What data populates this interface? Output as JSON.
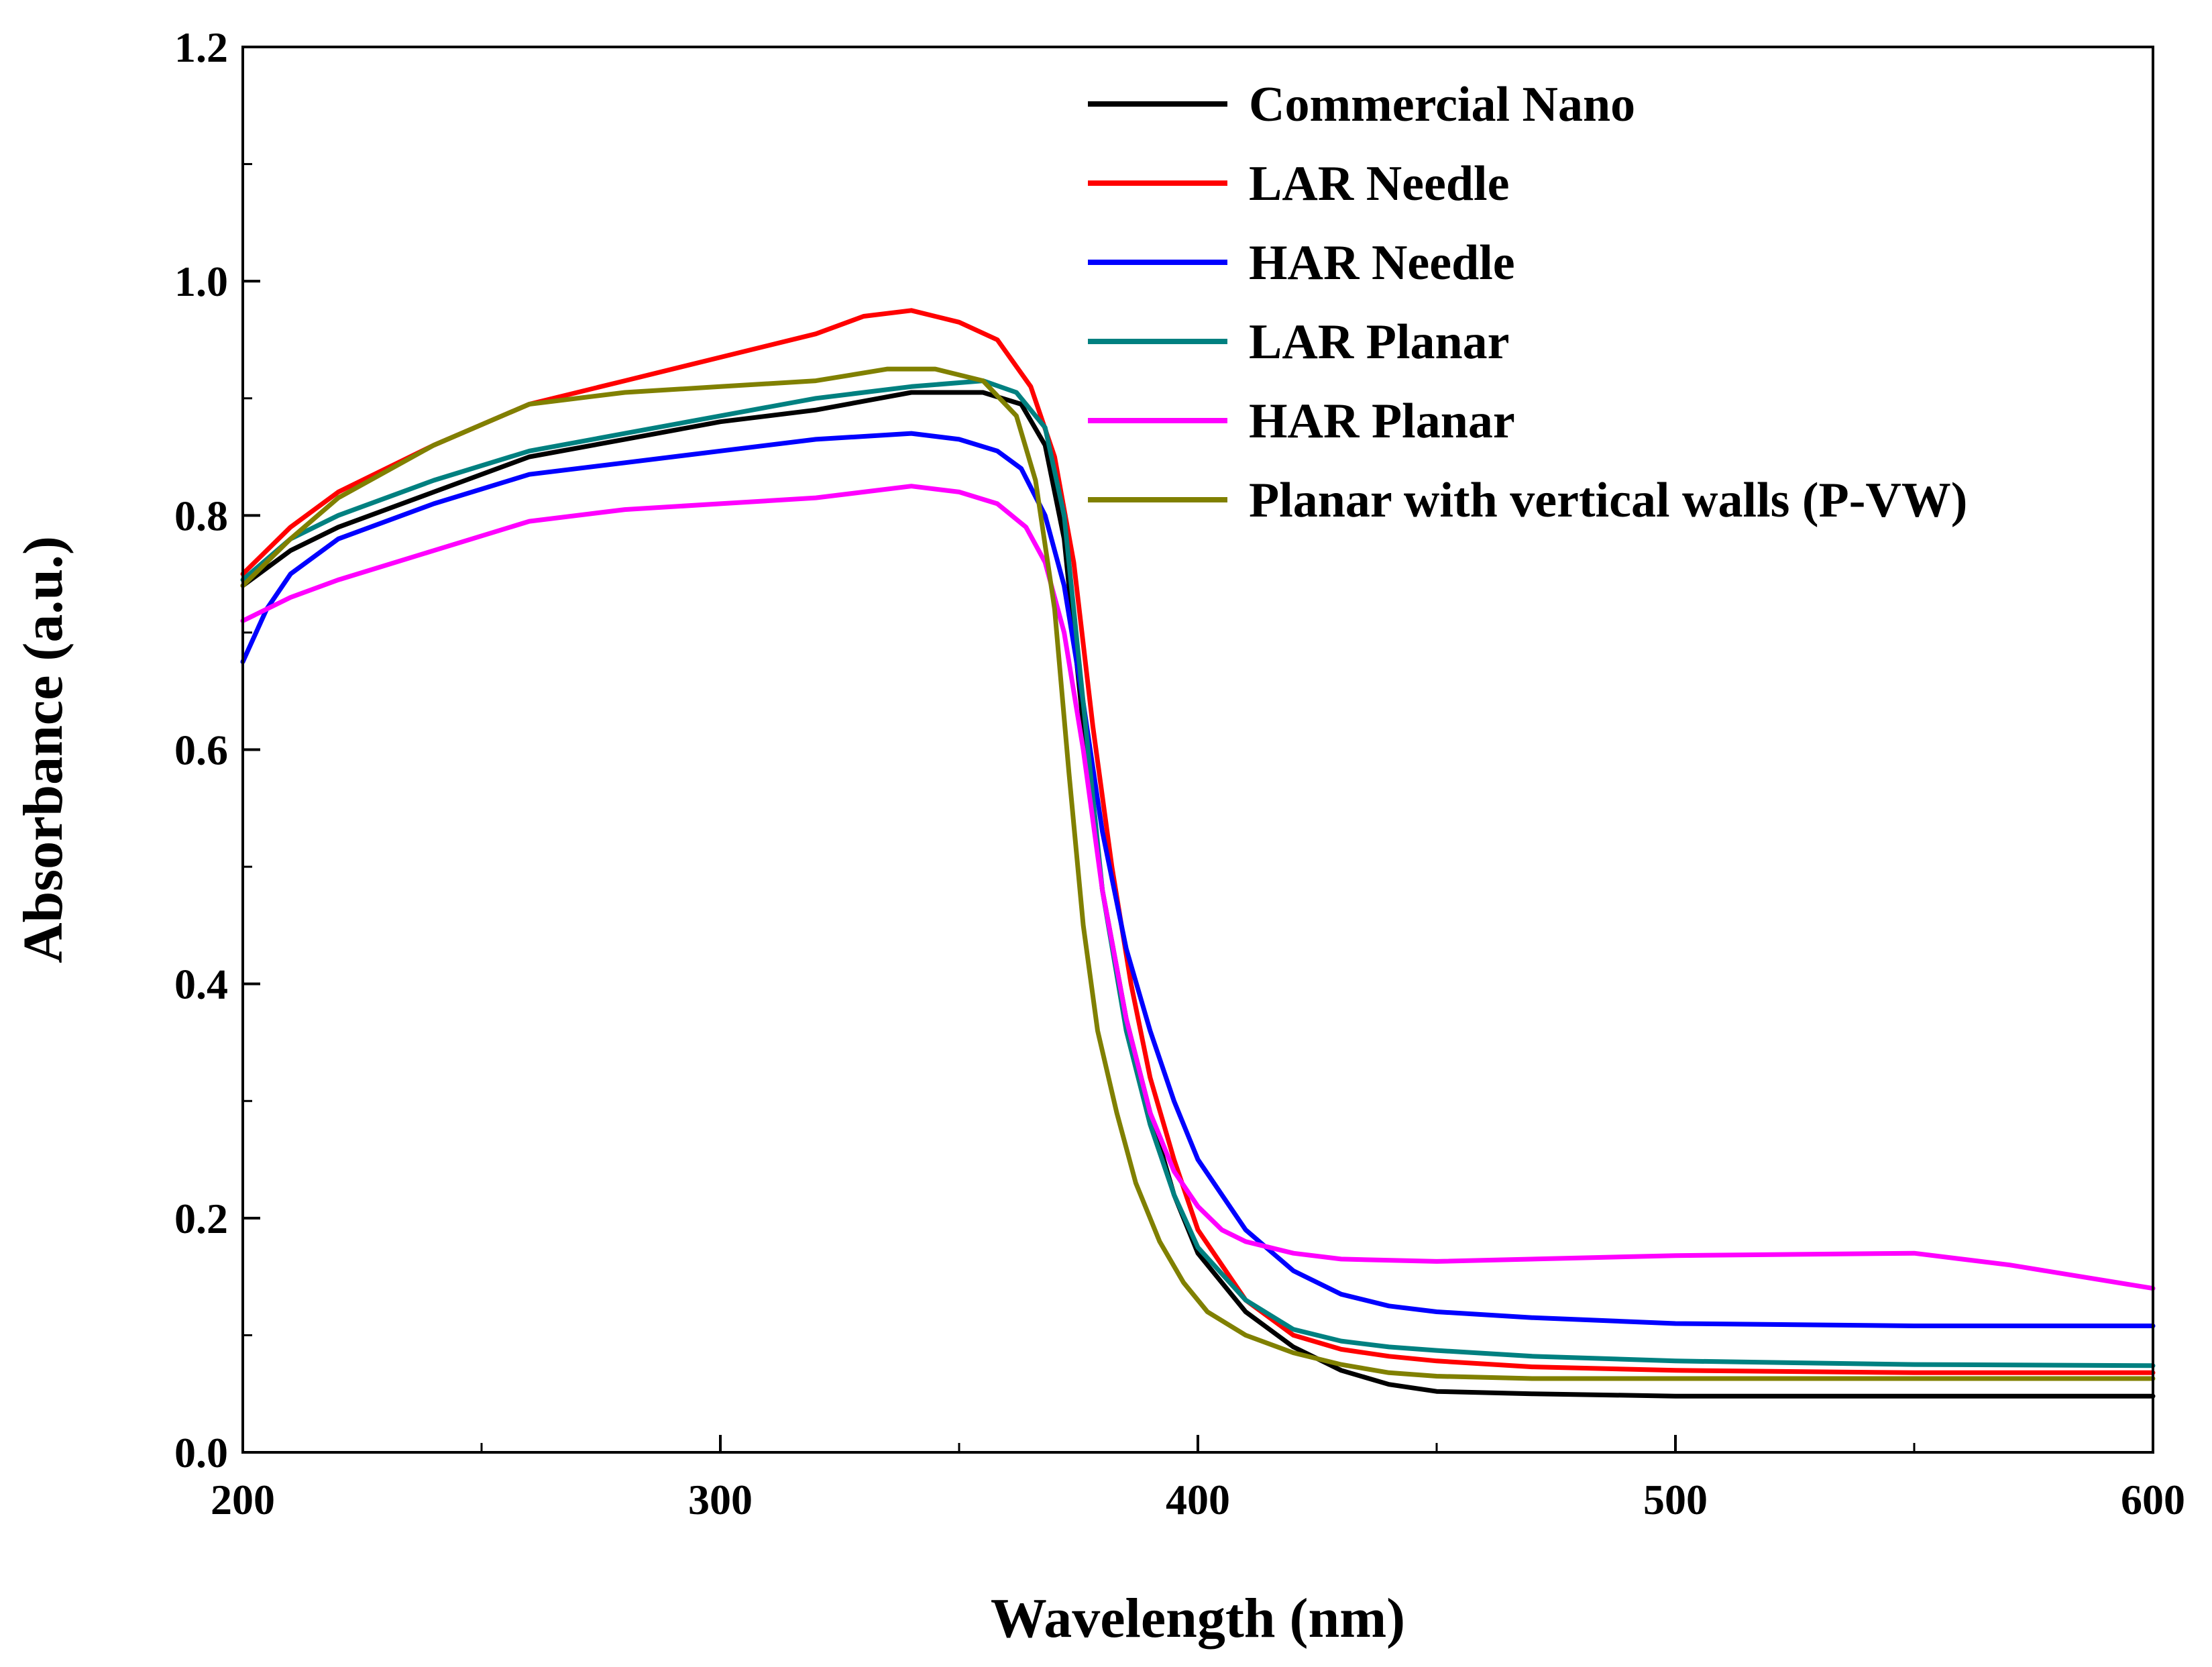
{
  "chart_data": {
    "type": "line",
    "title": "",
    "xlabel": "Wavelength (nm)",
    "ylabel": "Absorbance (a.u.)",
    "xlim": [
      200,
      600
    ],
    "ylim": [
      0.0,
      1.2
    ],
    "xticks": [
      200,
      300,
      400,
      500,
      600
    ],
    "xtick_labels": [
      "200",
      "300",
      "400",
      "500",
      "600"
    ],
    "yticks": [
      0.0,
      0.2,
      0.4,
      0.6,
      0.8,
      1.0,
      1.2
    ],
    "ytick_labels": [
      "0.0",
      "0.2",
      "0.4",
      "0.6",
      "0.8",
      "1.0",
      "1.2"
    ],
    "grid": false,
    "legend_position": "top-right",
    "series": [
      {
        "name": "Commercial Nano",
        "color": "#000000",
        "x": [
          200,
          210,
          220,
          240,
          260,
          280,
          300,
          320,
          340,
          355,
          363,
          368,
          372,
          376,
          380,
          385,
          390,
          395,
          400,
          410,
          420,
          430,
          440,
          450,
          470,
          500,
          550,
          600
        ],
        "y": [
          0.74,
          0.77,
          0.79,
          0.82,
          0.85,
          0.865,
          0.88,
          0.89,
          0.905,
          0.905,
          0.895,
          0.86,
          0.78,
          0.62,
          0.48,
          0.37,
          0.29,
          0.22,
          0.17,
          0.12,
          0.09,
          0.07,
          0.058,
          0.052,
          0.05,
          0.048,
          0.048,
          0.048
        ]
      },
      {
        "name": "LAR Needle",
        "color": "#ff0000",
        "x": [
          200,
          210,
          220,
          240,
          260,
          280,
          300,
          320,
          330,
          340,
          350,
          358,
          365,
          370,
          374,
          378,
          382,
          386,
          390,
          395,
          400,
          410,
          420,
          430,
          440,
          450,
          470,
          500,
          550,
          600
        ],
        "y": [
          0.75,
          0.79,
          0.82,
          0.86,
          0.895,
          0.915,
          0.935,
          0.955,
          0.97,
          0.975,
          0.965,
          0.95,
          0.91,
          0.85,
          0.76,
          0.62,
          0.5,
          0.4,
          0.32,
          0.25,
          0.19,
          0.13,
          0.1,
          0.088,
          0.082,
          0.078,
          0.073,
          0.07,
          0.068,
          0.068
        ]
      },
      {
        "name": "HAR Needle",
        "color": "#0000ff",
        "x": [
          200,
          205,
          210,
          220,
          240,
          260,
          280,
          300,
          320,
          340,
          350,
          358,
          363,
          368,
          372,
          376,
          380,
          385,
          390,
          395,
          400,
          410,
          420,
          430,
          440,
          450,
          470,
          500,
          550,
          600
        ],
        "y": [
          0.675,
          0.72,
          0.75,
          0.78,
          0.81,
          0.835,
          0.845,
          0.855,
          0.865,
          0.87,
          0.865,
          0.855,
          0.84,
          0.8,
          0.74,
          0.64,
          0.53,
          0.43,
          0.36,
          0.3,
          0.25,
          0.19,
          0.155,
          0.135,
          0.125,
          0.12,
          0.115,
          0.11,
          0.108,
          0.108
        ]
      },
      {
        "name": "LAR Planar",
        "color": "#008080",
        "x": [
          200,
          210,
          220,
          240,
          260,
          280,
          300,
          320,
          340,
          355,
          362,
          368,
          372,
          376,
          380,
          385,
          390,
          395,
          400,
          410,
          420,
          430,
          440,
          450,
          470,
          500,
          550,
          600
        ],
        "y": [
          0.745,
          0.78,
          0.8,
          0.83,
          0.855,
          0.87,
          0.885,
          0.9,
          0.91,
          0.915,
          0.905,
          0.875,
          0.8,
          0.64,
          0.48,
          0.36,
          0.28,
          0.22,
          0.175,
          0.13,
          0.105,
          0.095,
          0.09,
          0.087,
          0.082,
          0.078,
          0.075,
          0.074
        ]
      },
      {
        "name": "HAR Planar",
        "color": "#ff00ff",
        "x": [
          200,
          210,
          220,
          240,
          260,
          280,
          300,
          320,
          340,
          350,
          358,
          364,
          368,
          372,
          376,
          380,
          385,
          390,
          395,
          400,
          405,
          410,
          420,
          430,
          450,
          500,
          550,
          570,
          600
        ],
        "y": [
          0.71,
          0.73,
          0.745,
          0.77,
          0.795,
          0.805,
          0.81,
          0.815,
          0.825,
          0.82,
          0.81,
          0.79,
          0.76,
          0.7,
          0.6,
          0.48,
          0.37,
          0.29,
          0.24,
          0.21,
          0.19,
          0.18,
          0.17,
          0.165,
          0.163,
          0.168,
          0.17,
          0.16,
          0.14
        ]
      },
      {
        "name": "Planar with vertical walls (P-VW)",
        "color": "#808000",
        "x": [
          200,
          210,
          220,
          240,
          260,
          280,
          300,
          320,
          335,
          345,
          355,
          362,
          366,
          370,
          373,
          376,
          379,
          383,
          387,
          392,
          397,
          402,
          410,
          420,
          430,
          440,
          450,
          470,
          500,
          550,
          600
        ],
        "y": [
          0.74,
          0.78,
          0.815,
          0.86,
          0.895,
          0.905,
          0.91,
          0.915,
          0.925,
          0.925,
          0.915,
          0.885,
          0.83,
          0.72,
          0.58,
          0.45,
          0.36,
          0.29,
          0.23,
          0.18,
          0.145,
          0.12,
          0.1,
          0.085,
          0.075,
          0.068,
          0.065,
          0.063,
          0.063,
          0.063,
          0.063
        ]
      }
    ]
  }
}
